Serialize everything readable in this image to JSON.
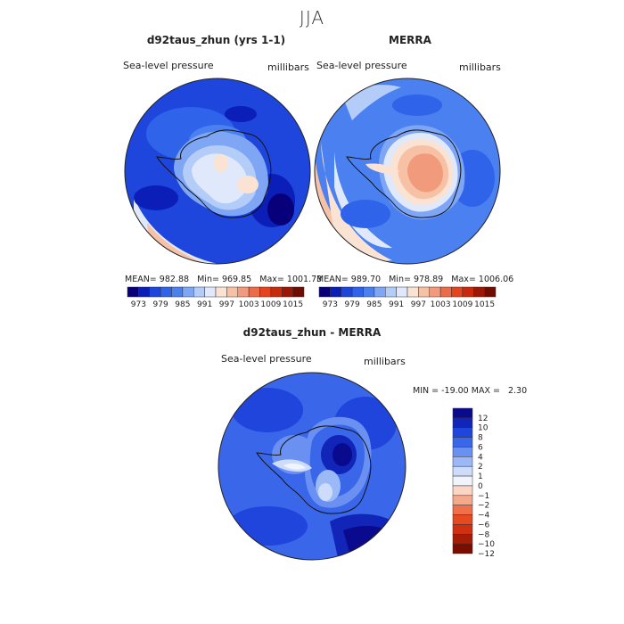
{
  "figure": {
    "season": "JJA",
    "colors": {
      "palette": [
        "#08007a",
        "#0b1fb8",
        "#1f46dc",
        "#2f63ea",
        "#4a80f0",
        "#7ea6f5",
        "#b3cdf8",
        "#dfe9fb",
        "#fbe3d4",
        "#f7c1a6",
        "#f29b7c",
        "#ec6c4a",
        "#e5441e",
        "#c92a0e",
        "#9c1705",
        "#700c00"
      ],
      "diff_palette": [
        "#0a0a8e",
        "#1125b8",
        "#1f45dc",
        "#3a66ea",
        "#6a90f2",
        "#9cb9f7",
        "#cddcfb",
        "#f1f4fd",
        "#fbd6c4",
        "#f6a88a",
        "#f0704c",
        "#e64a20",
        "#d0300f",
        "#a51d05",
        "#7a0d00"
      ]
    }
  },
  "panel_model": {
    "title": "d92taus_zhun (yrs 1-1)",
    "variable": "Sea-level pressure",
    "units": "millibars",
    "stats": {
      "mean_label": "MEAN=",
      "mean": "982.88",
      "min_label": "Min=",
      "min": "969.85",
      "max_label": "Max=",
      "max": "1001.73"
    },
    "colorbar_labels": [
      "973",
      "979",
      "985",
      "991",
      "997",
      "1003",
      "1009",
      "1015"
    ]
  },
  "panel_obs": {
    "title": "MERRA",
    "variable": "Sea-level pressure",
    "units": "millibars",
    "stats": {
      "mean_label": "MEAN=",
      "mean": "989.70",
      "min_label": "Min=",
      "min": "978.89",
      "max_label": "Max=",
      "max": "1006.06"
    },
    "colorbar_labels": [
      "973",
      "979",
      "985",
      "991",
      "997",
      "1003",
      "1009",
      "1015"
    ]
  },
  "panel_diff": {
    "title": "d92taus_zhun - MERRA",
    "variable": "Sea-level pressure",
    "units": "millibars",
    "stats_text": "MIN = -19.00 MAX =   2.30",
    "colorbar_labels": [
      "12",
      "10",
      "8",
      "6",
      "4",
      "2",
      "1",
      "0",
      "−1",
      "−2",
      "−4",
      "−6",
      "−8",
      "−10",
      "−12"
    ]
  }
}
